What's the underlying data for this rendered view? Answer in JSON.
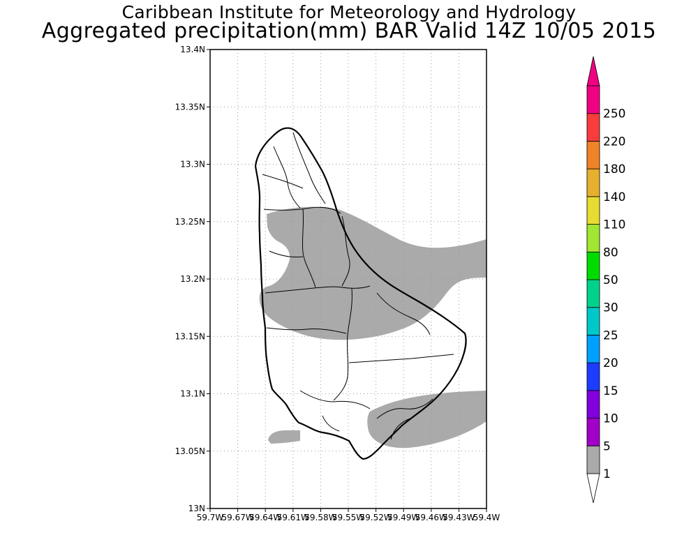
{
  "header": {
    "title_line1": "Caribbean Institute for Meteorology and Hydrology",
    "title_line2": "Aggregated precipitation(mm) BAR Valid 14Z 10/05 2015"
  },
  "map": {
    "lat_range": [
      13.0,
      13.4
    ],
    "lon_range": [
      -59.7,
      -59.4
    ],
    "y_ticks": [
      {
        "value": 13.0,
        "label": "13N"
      },
      {
        "value": 13.05,
        "label": "13.05N"
      },
      {
        "value": 13.1,
        "label": "13.1N"
      },
      {
        "value": 13.15,
        "label": "13.15N"
      },
      {
        "value": 13.2,
        "label": "13.2N"
      },
      {
        "value": 13.25,
        "label": "13.25N"
      },
      {
        "value": 13.3,
        "label": "13.3N"
      },
      {
        "value": 13.35,
        "label": "13.35N"
      },
      {
        "value": 13.4,
        "label": "13.4N"
      }
    ],
    "x_ticks": [
      {
        "value": -59.7,
        "label": "59.7W"
      },
      {
        "value": -59.67,
        "label": "59.67W"
      },
      {
        "value": -59.64,
        "label": "59.64W"
      },
      {
        "value": -59.61,
        "label": "59.61W"
      },
      {
        "value": -59.58,
        "label": "59.58W"
      },
      {
        "value": -59.55,
        "label": "59.55W"
      },
      {
        "value": -59.52,
        "label": "59.52W"
      },
      {
        "value": -59.49,
        "label": "59.49W"
      },
      {
        "value": -59.46,
        "label": "59.46W"
      },
      {
        "value": -59.43,
        "label": "59.43W"
      },
      {
        "value": -59.4,
        "label": "59.4W"
      }
    ],
    "grid": true,
    "island_outline_color": "#000000",
    "precip_fill_color": "#aaaaaa"
  },
  "colorbar": {
    "labels": [
      "1",
      "5",
      "10",
      "15",
      "20",
      "25",
      "30",
      "50",
      "80",
      "110",
      "140",
      "180",
      "220",
      "250"
    ],
    "colors": [
      "#aaaaaa",
      "#a200c8",
      "#8200dc",
      "#1e3cff",
      "#00a0ff",
      "#00c8c8",
      "#00d28c",
      "#00dc00",
      "#a0e632",
      "#e6dc32",
      "#e6af2d",
      "#f08228",
      "#fa3c3c",
      "#f00082"
    ],
    "under_color": "#ffffff",
    "over_color": "#f00082"
  }
}
